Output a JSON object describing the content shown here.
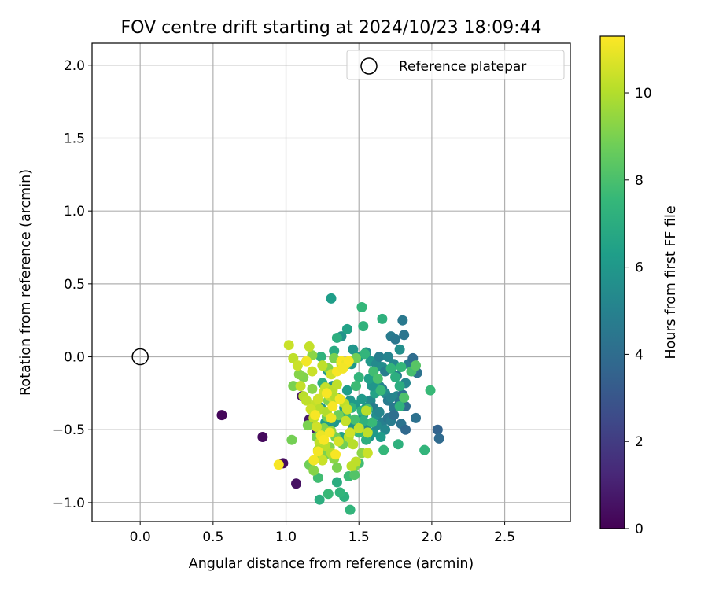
{
  "chart_data": {
    "type": "scatter",
    "title": "FOV centre drift starting at 2024/10/23 18:09:44",
    "xlabel": "Angular distance from reference (arcmin)",
    "ylabel": "Rotation from reference (arcmin)",
    "xlim": [
      -0.33,
      2.95
    ],
    "ylim": [
      -1.13,
      2.15
    ],
    "xticks": [
      0.0,
      0.5,
      1.0,
      1.5,
      2.0,
      2.5
    ],
    "yticks": [
      -1.0,
      -0.5,
      0.0,
      0.5,
      1.0,
      1.5,
      2.0
    ],
    "xtick_labels": [
      "0.0",
      "0.5",
      "1.0",
      "1.5",
      "2.0",
      "2.5"
    ],
    "ytick_labels": [
      "−1.0",
      "−0.5",
      "0.0",
      "0.5",
      "1.0",
      "1.5",
      "2.0"
    ],
    "grid": true,
    "legend": {
      "placement": "top-right",
      "label": "Reference platepar"
    },
    "reference_point": {
      "x": 0.0,
      "y": 0.0
    },
    "colorbar": {
      "label": "Hours from first FF file",
      "min": 0,
      "max": 11.3,
      "ticks": [
        0,
        2,
        4,
        6,
        8,
        10
      ],
      "tick_labels": [
        "0",
        "2",
        "4",
        "6",
        "8",
        "10"
      ],
      "colormap": "viridis"
    },
    "points": [
      [
        0.56,
        -0.4,
        0.2
      ],
      [
        0.84,
        -0.55,
        0.3
      ],
      [
        0.98,
        -0.73,
        0.4
      ],
      [
        1.07,
        -0.87,
        0.5
      ],
      [
        1.11,
        -0.27,
        0.6
      ],
      [
        1.16,
        -0.43,
        0.7
      ],
      [
        1.21,
        -0.5,
        0.8
      ],
      [
        1.46,
        0.05,
        5.9
      ],
      [
        1.5,
        0.0,
        6.2
      ],
      [
        1.55,
        0.03,
        5.6
      ],
      [
        1.58,
        -0.03,
        6.0
      ],
      [
        1.62,
        -0.05,
        5.4
      ],
      [
        1.64,
        0.0,
        4.9
      ],
      [
        1.66,
        -0.07,
        5.5
      ],
      [
        1.68,
        -0.1,
        4.8
      ],
      [
        1.7,
        0.0,
        5.1
      ],
      [
        1.72,
        0.14,
        4.7
      ],
      [
        1.74,
        -0.05,
        5.3
      ],
      [
        1.75,
        0.12,
        4.5
      ],
      [
        1.76,
        -0.13,
        4.9
      ],
      [
        1.78,
        0.05,
        5.6
      ],
      [
        1.8,
        0.25,
        4.6
      ],
      [
        1.81,
        0.15,
        4.4
      ],
      [
        1.82,
        -0.18,
        5.2
      ],
      [
        1.84,
        -0.05,
        4.7
      ],
      [
        1.87,
        -0.01,
        4.0
      ],
      [
        1.88,
        -0.1,
        5.1
      ],
      [
        1.9,
        -0.11,
        4.3
      ],
      [
        1.6,
        -0.1,
        5.0
      ],
      [
        1.62,
        -0.15,
        4.6
      ],
      [
        1.64,
        -0.2,
        5.3
      ],
      [
        1.66,
        -0.22,
        4.9
      ],
      [
        1.68,
        -0.25,
        5.5
      ],
      [
        1.7,
        -0.3,
        4.7
      ],
      [
        1.72,
        -0.28,
        5.1
      ],
      [
        1.74,
        -0.35,
        4.6
      ],
      [
        1.76,
        -0.27,
        5.2
      ],
      [
        1.78,
        -0.31,
        4.5
      ],
      [
        1.8,
        -0.26,
        4.2
      ],
      [
        1.82,
        -0.34,
        4.0
      ],
      [
        1.58,
        -0.3,
        5.4
      ],
      [
        1.6,
        -0.35,
        4.8
      ],
      [
        1.62,
        -0.4,
        5.6
      ],
      [
        1.64,
        -0.38,
        5.2
      ],
      [
        1.66,
        -0.45,
        4.9
      ],
      [
        1.68,
        -0.5,
        5.3
      ],
      [
        1.7,
        -0.42,
        4.4
      ],
      [
        1.72,
        -0.44,
        4.8
      ],
      [
        1.74,
        -0.4,
        4.1
      ],
      [
        1.79,
        -0.46,
        4.3
      ],
      [
        1.82,
        -0.5,
        3.8
      ],
      [
        1.89,
        -0.42,
        4.2
      ],
      [
        2.04,
        -0.5,
        3.6
      ],
      [
        2.05,
        -0.56,
        3.9
      ],
      [
        1.55,
        -0.35,
        5.7
      ],
      [
        1.53,
        -0.4,
        5.9
      ],
      [
        1.52,
        -0.29,
        6.1
      ],
      [
        1.55,
        -0.5,
        5.5
      ],
      [
        1.57,
        -0.55,
        5.8
      ],
      [
        1.6,
        -0.52,
        6.0
      ],
      [
        1.62,
        -0.47,
        5.4
      ],
      [
        1.65,
        -0.55,
        6.2
      ],
      [
        1.63,
        -0.22,
        6.3
      ],
      [
        1.61,
        -0.25,
        6.5
      ],
      [
        1.59,
        -0.2,
        5.9
      ],
      [
        1.57,
        -0.15,
        6.4
      ],
      [
        1.31,
        0.4,
        6.3
      ],
      [
        1.38,
        0.14,
        5.8
      ],
      [
        1.42,
        0.19,
        6.5
      ],
      [
        1.45,
        -0.05,
        6.0
      ],
      [
        1.42,
        -0.23,
        6.2
      ],
      [
        1.44,
        -0.3,
        5.9
      ],
      [
        1.47,
        -0.33,
        6.1
      ],
      [
        1.4,
        -0.35,
        6.3
      ],
      [
        1.36,
        -0.42,
        5.9
      ],
      [
        1.33,
        -0.45,
        6.0
      ],
      [
        1.38,
        -0.55,
        6.4
      ],
      [
        1.44,
        -0.52,
        6.2
      ],
      [
        1.46,
        -0.48,
        5.8
      ],
      [
        1.35,
        -0.28,
        6.1
      ],
      [
        1.32,
        -0.2,
        5.7
      ],
      [
        1.29,
        -0.1,
        6.0
      ],
      [
        1.28,
        -0.48,
        5.6
      ],
      [
        1.24,
        -0.35,
        5.9
      ],
      [
        1.27,
        -0.45,
        6.3
      ],
      [
        1.52,
        0.34,
        7.5
      ],
      [
        1.53,
        0.21,
        7.3
      ],
      [
        1.66,
        0.26,
        7.2
      ],
      [
        1.54,
        0.02,
        7.4
      ],
      [
        1.6,
        -0.1,
        7.8
      ],
      [
        1.63,
        -0.15,
        8.0
      ],
      [
        1.65,
        -0.23,
        7.6
      ],
      [
        1.72,
        -0.08,
        7.4
      ],
      [
        1.75,
        -0.14,
        7.1
      ],
      [
        1.78,
        -0.2,
        7.0
      ],
      [
        1.78,
        -0.34,
        7.3
      ],
      [
        1.77,
        -0.6,
        7.2
      ],
      [
        1.67,
        -0.64,
        7.5
      ],
      [
        1.95,
        -0.64,
        7.4
      ],
      [
        1.99,
        -0.23,
        7.6
      ],
      [
        1.81,
        -0.28,
        8.1
      ],
      [
        1.86,
        -0.1,
        7.9
      ],
      [
        1.89,
        -0.06,
        8.3
      ],
      [
        1.79,
        -0.07,
        7.5
      ],
      [
        1.5,
        -0.14,
        7.4
      ],
      [
        1.48,
        -0.2,
        7.7
      ],
      [
        1.56,
        -0.36,
        7.9
      ],
      [
        1.59,
        -0.45,
        7.6
      ],
      [
        1.52,
        -0.37,
        7.3
      ],
      [
        1.53,
        -0.44,
        7.2
      ],
      [
        1.41,
        -0.4,
        7.6
      ],
      [
        1.45,
        -0.35,
        7.3
      ],
      [
        1.47,
        -0.43,
        7.9
      ],
      [
        1.5,
        -0.52,
        7.6
      ],
      [
        1.55,
        -0.57,
        7.1
      ],
      [
        1.5,
        -0.73,
        7.8
      ],
      [
        1.44,
        -1.05,
        7.4
      ],
      [
        1.4,
        -0.96,
        7.2
      ],
      [
        1.37,
        -0.93,
        7.4
      ],
      [
        1.35,
        -0.86,
        7.0
      ],
      [
        1.43,
        -0.82,
        7.7
      ],
      [
        1.47,
        -0.81,
        8.2
      ],
      [
        1.29,
        -0.94,
        7.6
      ],
      [
        1.23,
        -0.98,
        7.1
      ],
      [
        1.22,
        -0.83,
        7.8
      ],
      [
        1.25,
        -0.18,
        7.0
      ],
      [
        1.24,
        0.0,
        7.3
      ],
      [
        1.33,
        0.04,
        6.9
      ],
      [
        1.35,
        0.13,
        7.1
      ],
      [
        1.42,
        -0.05,
        7.5
      ],
      [
        1.05,
        -0.2,
        9.0
      ],
      [
        1.04,
        -0.57,
        8.9
      ],
      [
        1.12,
        -0.14,
        9.1
      ],
      [
        1.18,
        -0.22,
        9.3
      ],
      [
        1.2,
        -0.4,
        9.0
      ],
      [
        1.21,
        -0.55,
        8.9
      ],
      [
        1.26,
        -0.49,
        9.2
      ],
      [
        1.28,
        -0.41,
        8.8
      ],
      [
        1.29,
        -0.3,
        9.2
      ],
      [
        1.3,
        -0.62,
        9.1
      ],
      [
        1.34,
        -0.55,
        8.9
      ],
      [
        1.27,
        -0.67,
        9.0
      ],
      [
        1.23,
        -0.68,
        9.1
      ],
      [
        1.16,
        -0.74,
        8.8
      ],
      [
        1.19,
        -0.78,
        9.2
      ],
      [
        1.33,
        -0.7,
        9.3
      ],
      [
        1.35,
        -0.76,
        9.0
      ],
      [
        1.39,
        -0.6,
        8.9
      ],
      [
        1.31,
        -0.51,
        9.4
      ],
      [
        1.36,
        -0.4,
        8.8
      ],
      [
        1.47,
        -0.75,
        9.1
      ],
      [
        1.52,
        -0.66,
        9.3
      ],
      [
        1.15,
        -0.47,
        9.0
      ],
      [
        1.09,
        -0.12,
        9.2
      ],
      [
        1.18,
        0.01,
        9.3
      ],
      [
        1.29,
        -0.08,
        9.2
      ],
      [
        1.33,
        -0.01,
        9.0
      ],
      [
        1.48,
        -0.01,
        8.8
      ],
      [
        1.02,
        0.08,
        10.4
      ],
      [
        1.05,
        -0.01,
        10.2
      ],
      [
        1.08,
        -0.06,
        10.4
      ],
      [
        1.1,
        -0.2,
        10.3
      ],
      [
        1.12,
        -0.27,
        10.1
      ],
      [
        1.14,
        -0.3,
        10.2
      ],
      [
        1.16,
        0.07,
        10.3
      ],
      [
        1.18,
        -0.1,
        10.4
      ],
      [
        1.2,
        -0.33,
        10.3
      ],
      [
        1.22,
        -0.29,
        10.5
      ],
      [
        1.23,
        -0.36,
        10.1
      ],
      [
        1.25,
        -0.06,
        10.2
      ],
      [
        1.26,
        -0.24,
        10.5
      ],
      [
        1.27,
        -0.21,
        10.3
      ],
      [
        1.28,
        -0.38,
        10.0
      ],
      [
        1.3,
        -0.27,
        10.3
      ],
      [
        1.31,
        -0.12,
        10.5
      ],
      [
        1.32,
        -0.23,
        10.1
      ],
      [
        1.33,
        -0.3,
        10.4
      ],
      [
        1.34,
        -0.28,
        10.0
      ],
      [
        1.35,
        -0.19,
        10.2
      ],
      [
        1.36,
        -0.58,
        10.6
      ],
      [
        1.38,
        -0.05,
        10.3
      ],
      [
        1.4,
        -0.32,
        10.2
      ],
      [
        1.41,
        -0.44,
        10.3
      ],
      [
        1.42,
        -0.36,
        10.4
      ],
      [
        1.43,
        -0.55,
        10.1
      ],
      [
        1.44,
        -0.52,
        10.5
      ],
      [
        1.45,
        -0.75,
        10.2
      ],
      [
        1.46,
        -0.6,
        10.1
      ],
      [
        1.48,
        -0.72,
        10.2
      ],
      [
        1.5,
        -0.49,
        10.3
      ],
      [
        1.55,
        -0.37,
        10.1
      ],
      [
        1.56,
        -0.52,
        10.2
      ],
      [
        1.56,
        -0.66,
        10.4
      ],
      [
        1.21,
        -0.48,
        10.5
      ],
      [
        1.23,
        -0.59,
        10.2
      ],
      [
        1.25,
        -0.71,
        10.4
      ],
      [
        1.27,
        -0.61,
        10.1
      ],
      [
        1.31,
        -0.66,
        10.0
      ],
      [
        1.19,
        -0.42,
        10.2
      ],
      [
        1.17,
        -0.36,
        10.5
      ],
      [
        1.22,
        -0.64,
        10.0
      ],
      [
        0.95,
        -0.74,
        11.2
      ],
      [
        1.14,
        -0.03,
        11.1
      ],
      [
        1.2,
        -0.4,
        11.2
      ],
      [
        1.22,
        -0.65,
        11.1
      ],
      [
        1.24,
        -0.54,
        11.0
      ],
      [
        1.26,
        -0.57,
        11.2
      ],
      [
        1.28,
        -0.25,
        11.2
      ],
      [
        1.3,
        -0.52,
        11.1
      ],
      [
        1.31,
        -0.42,
        11.0
      ],
      [
        1.34,
        -0.67,
        11.2
      ],
      [
        1.35,
        -0.1,
        11.2
      ],
      [
        1.37,
        -0.29,
        11.1
      ],
      [
        1.38,
        -0.03,
        11.2
      ],
      [
        1.41,
        -0.05,
        11.0
      ],
      [
        1.43,
        -0.03,
        11.2
      ],
      [
        1.19,
        -0.71,
        11.1
      ],
      [
        1.32,
        -0.34,
        11.2
      ],
      [
        1.39,
        -0.08,
        11.1
      ]
    ]
  }
}
